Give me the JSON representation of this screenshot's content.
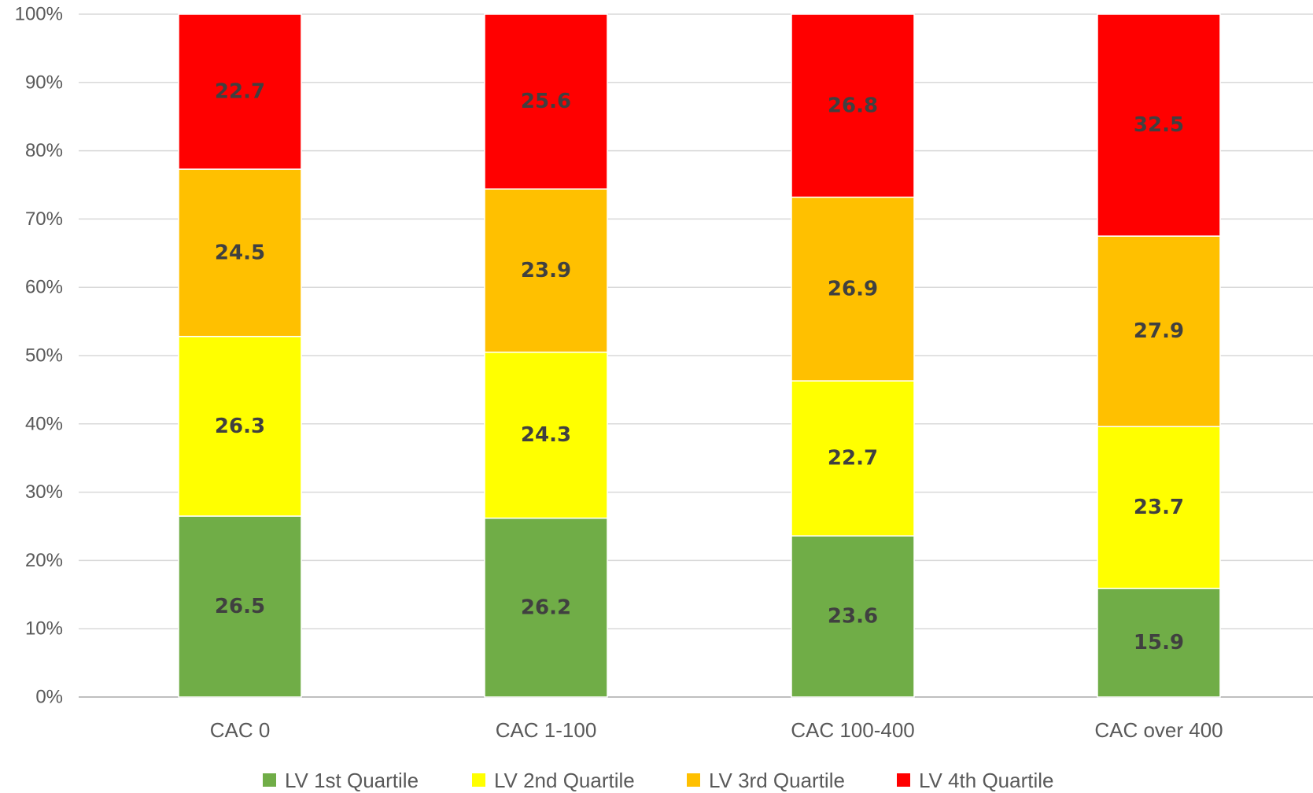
{
  "chart_data": {
    "type": "bar",
    "stacked": true,
    "percent_stacked": true,
    "categories": [
      "CAC 0",
      "CAC 1-100",
      "CAC 100-400",
      "CAC over 400"
    ],
    "series": [
      {
        "name": "LV 1st Quartile",
        "color": "#70ad47",
        "values": [
          26.5,
          26.2,
          23.6,
          15.9
        ]
      },
      {
        "name": "LV 2nd Quartile",
        "color": "#ffff00",
        "values": [
          26.3,
          24.3,
          22.7,
          23.7
        ]
      },
      {
        "name": "LV 3rd Quartile",
        "color": "#ffc000",
        "values": [
          24.5,
          23.9,
          26.9,
          27.9
        ]
      },
      {
        "name": "LV 4th Quartile",
        "color": "#ff0000",
        "values": [
          22.7,
          25.6,
          26.8,
          32.5
        ]
      }
    ],
    "y_ticks": [
      "0%",
      "10%",
      "20%",
      "30%",
      "40%",
      "50%",
      "60%",
      "70%",
      "80%",
      "90%",
      "100%"
    ],
    "ylim": [
      0,
      100
    ],
    "grid": true,
    "legend_position": "bottom",
    "title": "",
    "xlabel": "",
    "ylabel": ""
  }
}
